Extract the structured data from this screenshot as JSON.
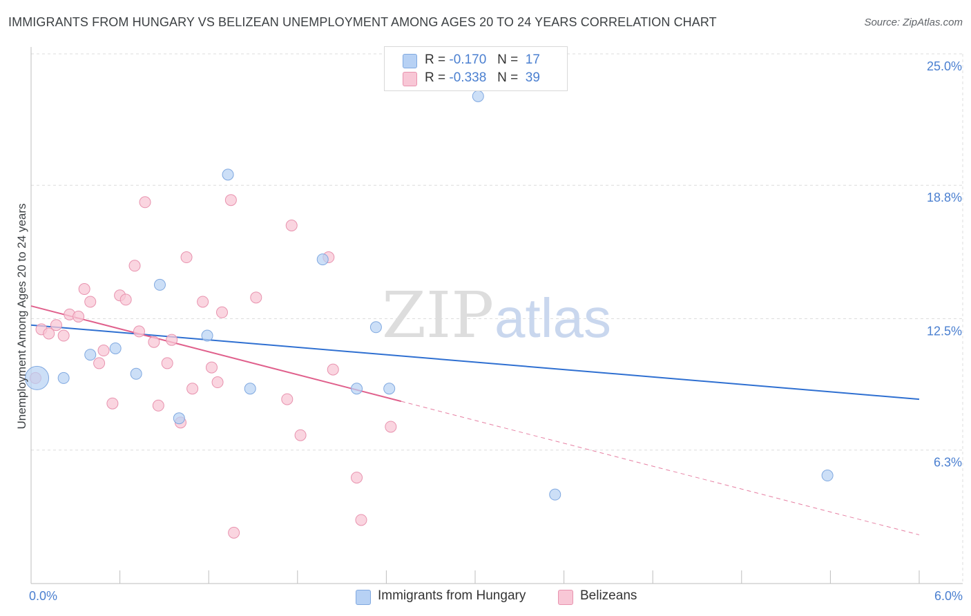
{
  "title": "IMMIGRANTS FROM HUNGARY VS BELIZEAN UNEMPLOYMENT AMONG AGES 20 TO 24 YEARS CORRELATION CHART",
  "source": "Source: ZipAtlas.com",
  "watermark": {
    "zip": "ZIP",
    "atlas": "atlas"
  },
  "colors": {
    "blue_fill": "#b7d1f4",
    "blue_stroke": "#7fa8e0",
    "blue_line": "#2e6fd1",
    "pink_fill": "#f8c7d6",
    "pink_stroke": "#e892ae",
    "pink_line": "#e0608c",
    "grid": "#dcdcdc",
    "axis_text": "#4a7fd0"
  },
  "legend": {
    "rows": [
      {
        "r_label": "R =",
        "r_value": "-0.170",
        "n_label": "N =",
        "n_value": "17"
      },
      {
        "r_label": "R =",
        "r_value": "-0.338",
        "n_label": "N =",
        "n_value": "39"
      }
    ]
  },
  "bottom_legend": {
    "series1": "Immigrants from Hungary",
    "series2": "Belizeans"
  },
  "chart_data": {
    "type": "scatter",
    "title": "IMMIGRANTS FROM HUNGARY VS BELIZEAN UNEMPLOYMENT AMONG AGES 20 TO 24 YEARS CORRELATION CHART",
    "xlabel": "",
    "ylabel": "Unemployment Among Ages 20 to 24 years",
    "xlim": [
      0.0,
      6.0
    ],
    "ylim": [
      0.0,
      25.0
    ],
    "x_tick_labels": [
      "0.0%",
      "6.0%"
    ],
    "y_ticks": [
      6.3,
      12.5,
      18.8,
      25.0
    ],
    "y_tick_labels": [
      "6.3%",
      "12.5%",
      "18.8%",
      "25.0%"
    ],
    "grid": true,
    "series": [
      {
        "name": "Immigrants from Hungary",
        "R": -0.17,
        "N": 17,
        "trend": {
          "x0": 0.0,
          "y0": 12.2,
          "x1": 6.0,
          "y1": 8.7,
          "dashed_from": null
        },
        "points": [
          {
            "x": 0.04,
            "y": 9.7,
            "big": true
          },
          {
            "x": 0.22,
            "y": 9.7
          },
          {
            "x": 0.4,
            "y": 10.8
          },
          {
            "x": 0.57,
            "y": 11.1
          },
          {
            "x": 0.71,
            "y": 9.9
          },
          {
            "x": 0.87,
            "y": 14.1
          },
          {
            "x": 1.0,
            "y": 7.8
          },
          {
            "x": 1.19,
            "y": 11.7
          },
          {
            "x": 1.33,
            "y": 19.3
          },
          {
            "x": 1.48,
            "y": 9.2
          },
          {
            "x": 1.97,
            "y": 15.3
          },
          {
            "x": 2.2,
            "y": 9.2
          },
          {
            "x": 2.33,
            "y": 12.1
          },
          {
            "x": 2.42,
            "y": 9.2
          },
          {
            "x": 3.02,
            "y": 23.0
          },
          {
            "x": 3.54,
            "y": 4.2
          },
          {
            "x": 5.38,
            "y": 5.1
          }
        ]
      },
      {
        "name": "Belizeans",
        "R": -0.338,
        "N": 39,
        "trend": {
          "x0": 0.0,
          "y0": 13.1,
          "x1": 6.0,
          "y1": 2.3,
          "solid_until": 2.5
        },
        "points": [
          {
            "x": 0.03,
            "y": 9.7
          },
          {
            "x": 0.07,
            "y": 12.0
          },
          {
            "x": 0.12,
            "y": 11.8
          },
          {
            "x": 0.17,
            "y": 12.2
          },
          {
            "x": 0.22,
            "y": 11.7
          },
          {
            "x": 0.26,
            "y": 12.7
          },
          {
            "x": 0.32,
            "y": 12.6
          },
          {
            "x": 0.36,
            "y": 13.9
          },
          {
            "x": 0.4,
            "y": 13.3
          },
          {
            "x": 0.46,
            "y": 10.4
          },
          {
            "x": 0.49,
            "y": 11.0
          },
          {
            "x": 0.55,
            "y": 8.5
          },
          {
            "x": 0.6,
            "y": 13.6
          },
          {
            "x": 0.64,
            "y": 13.4
          },
          {
            "x": 0.7,
            "y": 15.0
          },
          {
            "x": 0.73,
            "y": 11.9
          },
          {
            "x": 0.77,
            "y": 18.0
          },
          {
            "x": 0.83,
            "y": 11.4
          },
          {
            "x": 0.86,
            "y": 8.4
          },
          {
            "x": 0.92,
            "y": 10.4
          },
          {
            "x": 0.95,
            "y": 11.5
          },
          {
            "x": 1.01,
            "y": 7.6
          },
          {
            "x": 1.05,
            "y": 15.4
          },
          {
            "x": 1.09,
            "y": 9.2
          },
          {
            "x": 1.16,
            "y": 13.3
          },
          {
            "x": 1.22,
            "y": 10.2
          },
          {
            "x": 1.26,
            "y": 9.5
          },
          {
            "x": 1.29,
            "y": 12.8
          },
          {
            "x": 1.35,
            "y": 18.1
          },
          {
            "x": 1.37,
            "y": 2.4
          },
          {
            "x": 1.52,
            "y": 13.5
          },
          {
            "x": 1.73,
            "y": 8.7
          },
          {
            "x": 1.76,
            "y": 16.9
          },
          {
            "x": 1.82,
            "y": 7.0
          },
          {
            "x": 2.01,
            "y": 15.4
          },
          {
            "x": 2.04,
            "y": 10.1
          },
          {
            "x": 2.2,
            "y": 5.0
          },
          {
            "x": 2.23,
            "y": 3.0
          },
          {
            "x": 2.43,
            "y": 7.4
          }
        ]
      }
    ]
  }
}
